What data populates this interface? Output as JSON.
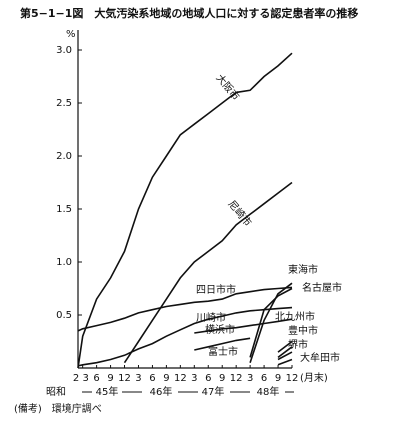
{
  "chart_data": {
    "type": "line",
    "title": "第5−1−1図　大気汚染系地域の地域人口に対する認定患者率の推移",
    "y_unit": "%",
    "x_unit": "(月末)",
    "x_groups": [
      "昭和",
      "45年",
      "46年",
      "47年",
      "48年"
    ],
    "note": "(備考)　環境庁調べ",
    "x": [
      2,
      3,
      6,
      9,
      12,
      15,
      18,
      21,
      24,
      27,
      30,
      33,
      36,
      39,
      42,
      45,
      48
    ],
    "xlim": [
      2,
      48
    ],
    "xticks": [
      {
        "value": 2,
        "label": "2"
      },
      {
        "value": 3,
        "label": "3"
      },
      {
        "value": 6,
        "label": "6"
      },
      {
        "value": 9,
        "label": "9"
      },
      {
        "value": 12,
        "label": "12"
      },
      {
        "value": 15,
        "label": "3"
      },
      {
        "value": 18,
        "label": "6"
      },
      {
        "value": 21,
        "label": "9"
      },
      {
        "value": 24,
        "label": "12"
      },
      {
        "value": 27,
        "label": "3"
      },
      {
        "value": 30,
        "label": "6"
      },
      {
        "value": 33,
        "label": "9"
      },
      {
        "value": 36,
        "label": "12"
      },
      {
        "value": 39,
        "label": "3"
      },
      {
        "value": 42,
        "label": "6"
      },
      {
        "value": 45,
        "label": "9"
      },
      {
        "value": 48,
        "label": "12"
      }
    ],
    "ylim": [
      0,
      3
    ],
    "yticks": [
      0.5,
      {
        "value": 1,
        "label": "1.0"
      },
      1.5,
      {
        "value": 2,
        "label": "2.0"
      },
      2.5,
      {
        "value": 3,
        "label": "3.0"
      }
    ],
    "grid": false,
    "series": [
      {
        "name": "大阪市",
        "color": "#111111",
        "values": [
          0,
          0.3,
          0.65,
          0.85,
          1.1,
          1.5,
          1.8,
          2.0,
          2.2,
          2.3,
          2.4,
          2.5,
          2.6,
          2.62,
          2.75,
          2.85,
          2.97
        ]
      },
      {
        "name": "尼崎市",
        "color": "#111111",
        "values": [
          null,
          null,
          null,
          null,
          0.05,
          0.25,
          0.45,
          0.65,
          0.85,
          1.0,
          1.1,
          1.2,
          1.35,
          1.45,
          1.55,
          1.65,
          1.75
        ]
      },
      {
        "name": "四日市市",
        "color": "#111111",
        "values": [
          0.35,
          0.37,
          0.4,
          0.43,
          0.47,
          0.52,
          0.55,
          0.58,
          0.6,
          0.62,
          0.63,
          0.65,
          0.7,
          0.72,
          0.74,
          0.75,
          0.76
        ]
      },
      {
        "name": "川崎市",
        "color": "#111111",
        "values": [
          0.02,
          0.03,
          0.05,
          0.08,
          0.12,
          0.18,
          0.23,
          0.3,
          0.36,
          0.42,
          0.46,
          0.49,
          0.52,
          0.54,
          0.55,
          0.56,
          0.57
        ]
      },
      {
        "name": "横浜市",
        "color": "#111111",
        "values": [
          null,
          null,
          null,
          null,
          null,
          null,
          null,
          null,
          null,
          0.33,
          0.35,
          0.37,
          0.38,
          0.4,
          0.42,
          0.44,
          0.46
        ]
      },
      {
        "name": "富士市",
        "color": "#111111",
        "values": [
          null,
          null,
          null,
          null,
          null,
          null,
          null,
          null,
          null,
          0.17,
          0.2,
          0.23,
          0.26,
          0.28,
          null,
          null,
          null
        ]
      },
      {
        "name": "東海市",
        "color": "#111111",
        "values": [
          null,
          null,
          null,
          null,
          null,
          null,
          null,
          null,
          null,
          null,
          null,
          null,
          null,
          0.05,
          0.45,
          0.7,
          0.8
        ]
      },
      {
        "name": "名古屋市",
        "color": "#111111",
        "values": [
          null,
          null,
          null,
          null,
          null,
          null,
          null,
          null,
          null,
          null,
          null,
          null,
          null,
          0.1,
          0.55,
          0.68,
          0.75
        ]
      },
      {
        "name": "北九州市",
        "color": "#111111",
        "values": [
          null,
          null,
          null,
          null,
          null,
          null,
          null,
          null,
          null,
          null,
          null,
          null,
          null,
          null,
          null,
          0.15,
          0.25
        ]
      },
      {
        "name": "豊中市",
        "color": "#111111",
        "values": [
          null,
          null,
          null,
          null,
          null,
          null,
          null,
          null,
          null,
          null,
          null,
          null,
          null,
          null,
          null,
          0.1,
          0.2
        ]
      },
      {
        "name": "堺市",
        "color": "#111111",
        "values": [
          null,
          null,
          null,
          null,
          null,
          null,
          null,
          null,
          null,
          null,
          null,
          null,
          null,
          null,
          null,
          0.08,
          0.15
        ]
      },
      {
        "name": "大牟田市",
        "color": "#111111",
        "values": [
          null,
          null,
          null,
          null,
          null,
          null,
          null,
          null,
          null,
          null,
          null,
          null,
          null,
          null,
          null,
          0.03,
          0.08
        ]
      }
    ]
  }
}
